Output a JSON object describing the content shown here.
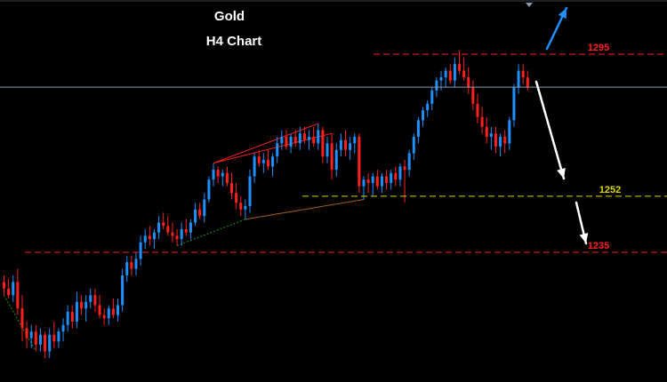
{
  "chart_data": {
    "type": "candlestick",
    "title": "Gold",
    "subtitle": "H4 Chart",
    "ylim": [
      1200,
      1305
    ],
    "colors": {
      "background": "#000000",
      "bull": "#1e90ff",
      "bear": "#ff2020",
      "resistance": "#ff2020",
      "support": "#d8d800",
      "price_line": "#8a9bb0",
      "arrow_up": "#1e90ff",
      "arrow_down": "#ffffff",
      "trend_red": "#ff2020",
      "trend_green": "#1a9a1a"
    },
    "price_line": 1285,
    "levels": [
      {
        "value": 1295,
        "label": "1295",
        "style": "dashed-red"
      },
      {
        "value": 1252,
        "label": "1252",
        "style": "dashed-yellow"
      },
      {
        "value": 1235,
        "label": "1235",
        "style": "dashed-red"
      }
    ],
    "candles": [
      [
        1226,
        1228,
        1222,
        1224
      ],
      [
        1224,
        1227,
        1221,
        1222
      ],
      [
        1222,
        1228,
        1220,
        1226
      ],
      [
        1226,
        1230,
        1216,
        1218
      ],
      [
        1218,
        1222,
        1208,
        1212
      ],
      [
        1212,
        1214,
        1206,
        1209
      ],
      [
        1209,
        1213,
        1206,
        1211
      ],
      [
        1211,
        1213,
        1205,
        1207
      ],
      [
        1207,
        1212,
        1205,
        1210
      ],
      [
        1210,
        1211,
        1203,
        1205
      ],
      [
        1205,
        1212,
        1203,
        1210
      ],
      [
        1210,
        1214,
        1206,
        1208
      ],
      [
        1208,
        1212,
        1206,
        1211
      ],
      [
        1211,
        1215,
        1208,
        1213
      ],
      [
        1213,
        1219,
        1211,
        1217
      ],
      [
        1217,
        1219,
        1212,
        1214
      ],
      [
        1214,
        1223,
        1212,
        1220
      ],
      [
        1220,
        1222,
        1216,
        1218
      ],
      [
        1218,
        1222,
        1214,
        1220
      ],
      [
        1220,
        1224,
        1218,
        1222
      ],
      [
        1222,
        1224,
        1217,
        1219
      ],
      [
        1219,
        1222,
        1215,
        1216
      ],
      [
        1216,
        1218,
        1213,
        1215
      ],
      [
        1215,
        1219,
        1213,
        1218
      ],
      [
        1218,
        1221,
        1215,
        1216
      ],
      [
        1216,
        1221,
        1214,
        1219
      ],
      [
        1219,
        1230,
        1217,
        1228
      ],
      [
        1228,
        1234,
        1226,
        1232
      ],
      [
        1232,
        1234,
        1228,
        1230
      ],
      [
        1230,
        1235,
        1228,
        1233
      ],
      [
        1233,
        1240,
        1231,
        1238
      ],
      [
        1238,
        1242,
        1236,
        1240
      ],
      [
        1240,
        1243,
        1237,
        1239
      ],
      [
        1239,
        1242,
        1236,
        1241
      ],
      [
        1241,
        1246,
        1239,
        1244
      ],
      [
        1244,
        1247,
        1242,
        1243
      ],
      [
        1243,
        1246,
        1240,
        1241
      ],
      [
        1241,
        1244,
        1238,
        1240
      ],
      [
        1240,
        1242,
        1237,
        1239
      ],
      [
        1239,
        1244,
        1237,
        1242
      ],
      [
        1242,
        1245,
        1240,
        1241
      ],
      [
        1241,
        1245,
        1239,
        1244
      ],
      [
        1244,
        1250,
        1243,
        1248
      ],
      [
        1248,
        1250,
        1245,
        1246
      ],
      [
        1246,
        1253,
        1244,
        1251
      ],
      [
        1251,
        1258,
        1250,
        1257
      ],
      [
        1257,
        1262,
        1255,
        1260
      ],
      [
        1260,
        1261,
        1256,
        1258
      ],
      [
        1258,
        1260,
        1255,
        1259
      ],
      [
        1259,
        1261,
        1255,
        1256
      ],
      [
        1256,
        1259,
        1251,
        1253
      ],
      [
        1253,
        1256,
        1248,
        1250
      ],
      [
        1250,
        1252,
        1246,
        1248
      ],
      [
        1248,
        1251,
        1245,
        1249
      ],
      [
        1249,
        1260,
        1247,
        1258
      ],
      [
        1258,
        1265,
        1256,
        1264
      ],
      [
        1264,
        1266,
        1261,
        1262
      ],
      [
        1262,
        1265,
        1259,
        1263
      ],
      [
        1263,
        1266,
        1260,
        1261
      ],
      [
        1261,
        1265,
        1258,
        1264
      ],
      [
        1264,
        1270,
        1262,
        1268
      ],
      [
        1268,
        1272,
        1266,
        1270
      ],
      [
        1270,
        1272,
        1266,
        1267
      ],
      [
        1267,
        1271,
        1265,
        1270
      ],
      [
        1270,
        1272,
        1267,
        1268
      ],
      [
        1268,
        1273,
        1266,
        1271
      ],
      [
        1271,
        1273,
        1268,
        1269
      ],
      [
        1269,
        1272,
        1266,
        1270
      ],
      [
        1270,
        1273,
        1267,
        1268
      ],
      [
        1268,
        1274,
        1266,
        1272
      ],
      [
        1272,
        1273,
        1262,
        1264
      ],
      [
        1264,
        1270,
        1262,
        1268
      ],
      [
        1268,
        1271,
        1257,
        1260
      ],
      [
        1260,
        1268,
        1258,
        1266
      ],
      [
        1266,
        1271,
        1264,
        1269
      ],
      [
        1269,
        1272,
        1264,
        1266
      ],
      [
        1266,
        1270,
        1263,
        1268
      ],
      [
        1268,
        1271,
        1265,
        1270
      ],
      [
        1270,
        1271,
        1253,
        1255
      ],
      [
        1255,
        1258,
        1251,
        1257
      ],
      [
        1257,
        1259,
        1253,
        1256
      ],
      [
        1256,
        1259,
        1252,
        1258
      ],
      [
        1258,
        1260,
        1254,
        1255
      ],
      [
        1255,
        1259,
        1253,
        1258
      ],
      [
        1258,
        1260,
        1254,
        1256
      ],
      [
        1256,
        1260,
        1254,
        1259
      ],
      [
        1259,
        1261,
        1255,
        1257
      ],
      [
        1257,
        1262,
        1255,
        1261
      ],
      [
        1261,
        1263,
        1250,
        1260
      ],
      [
        1260,
        1266,
        1258,
        1265
      ],
      [
        1265,
        1271,
        1263,
        1270
      ],
      [
        1270,
        1276,
        1268,
        1275
      ],
      [
        1275,
        1279,
        1273,
        1278
      ],
      [
        1278,
        1281,
        1276,
        1280
      ],
      [
        1280,
        1285,
        1278,
        1284
      ],
      [
        1284,
        1288,
        1282,
        1287
      ],
      [
        1287,
        1290,
        1284,
        1288
      ],
      [
        1288,
        1291,
        1285,
        1290
      ],
      [
        1290,
        1292,
        1286,
        1287
      ],
      [
        1287,
        1294,
        1285,
        1292
      ],
      [
        1292,
        1296,
        1289,
        1290
      ],
      [
        1290,
        1294,
        1287,
        1288
      ],
      [
        1288,
        1291,
        1283,
        1285
      ],
      [
        1285,
        1287,
        1278,
        1280
      ],
      [
        1280,
        1283,
        1274,
        1276
      ],
      [
        1276,
        1279,
        1271,
        1273
      ],
      [
        1273,
        1276,
        1268,
        1270
      ],
      [
        1270,
        1273,
        1266,
        1271
      ],
      [
        1271,
        1273,
        1265,
        1267
      ],
      [
        1267,
        1271,
        1264,
        1270
      ],
      [
        1270,
        1272,
        1265,
        1268
      ],
      [
        1268,
        1276,
        1266,
        1275
      ],
      [
        1275,
        1286,
        1273,
        1285
      ],
      [
        1285,
        1292,
        1283,
        1290
      ],
      [
        1290,
        1292,
        1286,
        1288
      ],
      [
        1288,
        1290,
        1284,
        1285
      ]
    ]
  }
}
